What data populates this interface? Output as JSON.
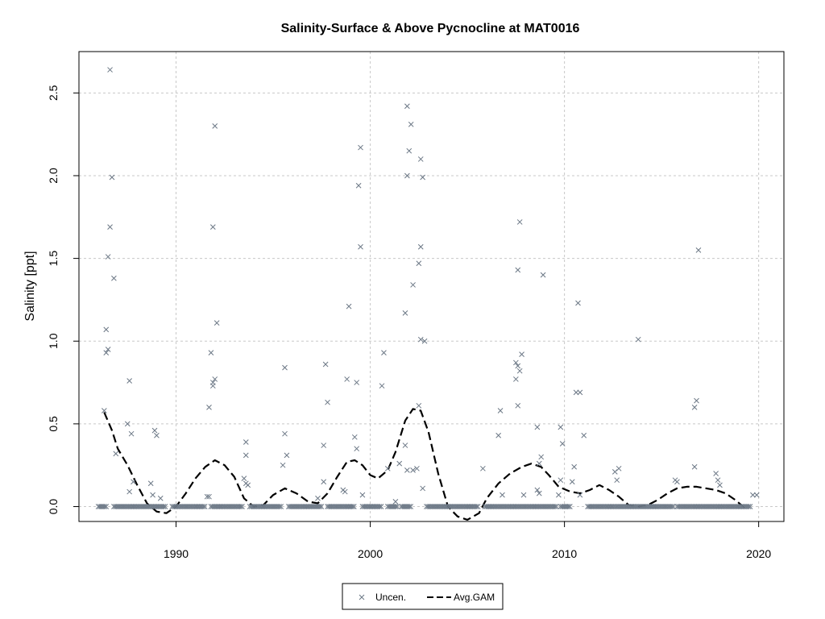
{
  "chart_data": {
    "type": "scatter",
    "title": "Salinity-Surface & Above Pycnocline at MAT0016",
    "xlabel": "",
    "ylabel": "Salinity [ppt]",
    "xlim": [
      1985,
      2021.3
    ],
    "ylim": [
      -0.09,
      2.75
    ],
    "x_ticks": [
      1990,
      2000,
      2010,
      2020
    ],
    "y_ticks": [
      0.0,
      0.5,
      1.0,
      1.5,
      2.0,
      2.5
    ],
    "x_tick_labels": [
      "1990",
      "2000",
      "2010",
      "2020"
    ],
    "y_tick_labels": [
      "0.0",
      "0.5",
      "1.0",
      "1.5",
      "2.0",
      "2.5"
    ],
    "grid": true,
    "legend": {
      "placement": "bottom-center",
      "entries": [
        "Uncen.",
        "Avg.GAM"
      ]
    },
    "colors": {
      "points": "#6b7785",
      "gam": "#000000",
      "grid": "#c8c8c8"
    },
    "series": [
      {
        "name": "Uncen.",
        "type": "scatter",
        "marker": "x",
        "points": [
          [
            1986.6,
            2.64
          ],
          [
            1986.7,
            1.99
          ],
          [
            1986.6,
            1.69
          ],
          [
            1986.5,
            1.51
          ],
          [
            1986.8,
            1.38
          ],
          [
            1986.4,
            1.07
          ],
          [
            1986.5,
            0.95
          ],
          [
            1986.4,
            0.93
          ],
          [
            1986.3,
            0.58
          ],
          [
            1986.9,
            0.32
          ],
          [
            1987.6,
            0.76
          ],
          [
            1987.5,
            0.5
          ],
          [
            1987.7,
            0.44
          ],
          [
            1987.8,
            0.15
          ],
          [
            1987.6,
            0.09
          ],
          [
            1988.7,
            0.14
          ],
          [
            1988.9,
            0.46
          ],
          [
            1989.0,
            0.43
          ],
          [
            1988.8,
            0.07
          ],
          [
            1989.2,
            0.05
          ],
          [
            1991.6,
            0.06
          ],
          [
            1991.7,
            0.06
          ],
          [
            1991.8,
            0.93
          ],
          [
            1991.9,
            0.73
          ],
          [
            1991.7,
            0.6
          ],
          [
            1991.9,
            0.75
          ],
          [
            1992.0,
            0.77
          ],
          [
            1992.1,
            1.11
          ],
          [
            1992.0,
            2.3
          ],
          [
            1991.9,
            1.69
          ],
          [
            1993.6,
            0.39
          ],
          [
            1993.5,
            0.17
          ],
          [
            1993.6,
            0.14
          ],
          [
            1993.7,
            0.13
          ],
          [
            1993.6,
            0.31
          ],
          [
            1995.6,
            0.84
          ],
          [
            1995.6,
            0.44
          ],
          [
            1995.5,
            0.25
          ],
          [
            1995.7,
            0.31
          ],
          [
            1997.6,
            0.37
          ],
          [
            1997.7,
            0.86
          ],
          [
            1997.8,
            0.63
          ],
          [
            1997.6,
            0.15
          ],
          [
            1997.3,
            0.05
          ],
          [
            1998.9,
            1.21
          ],
          [
            1998.8,
            0.77
          ],
          [
            1998.6,
            0.1
          ],
          [
            1998.7,
            0.09
          ],
          [
            1999.5,
            2.17
          ],
          [
            1999.4,
            1.94
          ],
          [
            1999.5,
            1.57
          ],
          [
            1999.3,
            0.75
          ],
          [
            1999.2,
            0.42
          ],
          [
            1999.3,
            0.35
          ],
          [
            1999.6,
            0.07
          ],
          [
            2000.7,
            0.93
          ],
          [
            2000.6,
            0.73
          ],
          [
            2000.9,
            0.23
          ],
          [
            2001.9,
            2.42
          ],
          [
            2002.1,
            2.31
          ],
          [
            2002.0,
            2.15
          ],
          [
            2001.9,
            2.0
          ],
          [
            2002.2,
            1.34
          ],
          [
            2001.8,
            1.17
          ],
          [
            2001.5,
            0.26
          ],
          [
            2001.8,
            0.37
          ],
          [
            2001.9,
            0.22
          ],
          [
            2002.2,
            0.22
          ],
          [
            2002.4,
            0.23
          ],
          [
            2002.5,
            0.61
          ],
          [
            2002.6,
            2.1
          ],
          [
            2002.7,
            1.99
          ],
          [
            2002.6,
            1.57
          ],
          [
            2002.5,
            1.47
          ],
          [
            2002.6,
            1.01
          ],
          [
            2002.8,
            1.0
          ],
          [
            2002.7,
            0.11
          ],
          [
            2001.3,
            0.03
          ],
          [
            2005.8,
            0.23
          ],
          [
            2006.7,
            0.58
          ],
          [
            2006.6,
            0.43
          ],
          [
            2006.8,
            0.07
          ],
          [
            2007.7,
            1.72
          ],
          [
            2007.6,
            1.43
          ],
          [
            2007.8,
            0.92
          ],
          [
            2007.5,
            0.87
          ],
          [
            2007.6,
            0.85
          ],
          [
            2007.7,
            0.82
          ],
          [
            2007.5,
            0.77
          ],
          [
            2007.6,
            0.61
          ],
          [
            2007.9,
            0.07
          ],
          [
            2008.6,
            0.48
          ],
          [
            2008.9,
            1.4
          ],
          [
            2008.7,
            0.08
          ],
          [
            2008.6,
            0.1
          ],
          [
            2008.8,
            0.3
          ],
          [
            2008.7,
            0.26
          ],
          [
            2009.8,
            0.48
          ],
          [
            2009.9,
            0.38
          ],
          [
            2009.7,
            0.07
          ],
          [
            2009.8,
            0.16
          ],
          [
            2010.7,
            1.23
          ],
          [
            2010.6,
            0.69
          ],
          [
            2010.8,
            0.69
          ],
          [
            2011.0,
            0.43
          ],
          [
            2010.5,
            0.24
          ],
          [
            2010.4,
            0.15
          ],
          [
            2010.8,
            0.07
          ],
          [
            2012.6,
            0.21
          ],
          [
            2012.8,
            0.23
          ],
          [
            2012.7,
            0.16
          ],
          [
            2013.8,
            1.01
          ],
          [
            2015.7,
            0.16
          ],
          [
            2015.8,
            0.15
          ],
          [
            2016.7,
            0.6
          ],
          [
            2016.8,
            0.64
          ],
          [
            2016.9,
            1.55
          ],
          [
            2016.7,
            0.24
          ],
          [
            2017.8,
            0.2
          ],
          [
            2017.9,
            0.16
          ],
          [
            2018.0,
            0.13
          ],
          [
            2019.7,
            0.07
          ],
          [
            2019.9,
            0.07
          ]
        ],
        "zero_cluster_ranges": [
          [
            1986.0,
            1986.4
          ],
          [
            1986.8,
            1989.5
          ],
          [
            1989.8,
            1991.5
          ],
          [
            1991.8,
            1993.4
          ],
          [
            1993.8,
            1995.4
          ],
          [
            1995.8,
            1997.5
          ],
          [
            1997.8,
            1999.2
          ],
          [
            1999.6,
            2000.6
          ],
          [
            2000.9,
            2001.4
          ],
          [
            2001.6,
            2002.1
          ],
          [
            2002.9,
            2005.6
          ],
          [
            2005.9,
            2009.6
          ],
          [
            2009.8,
            2010.3
          ],
          [
            2011.2,
            2015.6
          ],
          [
            2015.8,
            2019.6
          ]
        ]
      },
      {
        "name": "Avg.GAM",
        "type": "line",
        "style": "dashed",
        "points": [
          [
            1986.3,
            0.57
          ],
          [
            1986.7,
            0.46
          ],
          [
            1987.0,
            0.35
          ],
          [
            1987.5,
            0.25
          ],
          [
            1988.0,
            0.13
          ],
          [
            1988.5,
            0.02
          ],
          [
            1989.0,
            -0.03
          ],
          [
            1989.5,
            -0.04
          ],
          [
            1990.0,
            0.0
          ],
          [
            1990.5,
            0.08
          ],
          [
            1991.0,
            0.17
          ],
          [
            1991.5,
            0.24
          ],
          [
            1992.0,
            0.28
          ],
          [
            1992.5,
            0.25
          ],
          [
            1993.0,
            0.18
          ],
          [
            1993.5,
            0.05
          ],
          [
            1994.0,
            0.0
          ],
          [
            1994.5,
            0.01
          ],
          [
            1995.0,
            0.07
          ],
          [
            1995.6,
            0.11
          ],
          [
            1996.2,
            0.08
          ],
          [
            1996.8,
            0.03
          ],
          [
            1997.3,
            0.02
          ],
          [
            1997.8,
            0.08
          ],
          [
            1998.3,
            0.18
          ],
          [
            1998.8,
            0.27
          ],
          [
            1999.2,
            0.28
          ],
          [
            1999.6,
            0.25
          ],
          [
            2000.0,
            0.19
          ],
          [
            2000.4,
            0.17
          ],
          [
            2000.9,
            0.22
          ],
          [
            2001.3,
            0.33
          ],
          [
            2001.8,
            0.52
          ],
          [
            2002.2,
            0.59
          ],
          [
            2002.6,
            0.58
          ],
          [
            2003.0,
            0.45
          ],
          [
            2003.5,
            0.2
          ],
          [
            2004.0,
            0.0
          ],
          [
            2004.5,
            -0.06
          ],
          [
            2005.0,
            -0.08
          ],
          [
            2005.6,
            -0.04
          ],
          [
            2006.0,
            0.05
          ],
          [
            2006.6,
            0.14
          ],
          [
            2007.2,
            0.2
          ],
          [
            2007.8,
            0.24
          ],
          [
            2008.3,
            0.26
          ],
          [
            2008.8,
            0.24
          ],
          [
            2009.2,
            0.19
          ],
          [
            2009.7,
            0.12
          ],
          [
            2010.3,
            0.09
          ],
          [
            2010.8,
            0.08
          ],
          [
            2011.3,
            0.1
          ],
          [
            2011.8,
            0.13
          ],
          [
            2012.3,
            0.1
          ],
          [
            2012.8,
            0.06
          ],
          [
            2013.3,
            0.01
          ],
          [
            2013.8,
            0.0
          ],
          [
            2014.3,
            0.01
          ],
          [
            2014.8,
            0.04
          ],
          [
            2015.3,
            0.08
          ],
          [
            2015.8,
            0.11
          ],
          [
            2016.3,
            0.12
          ],
          [
            2016.8,
            0.12
          ],
          [
            2017.3,
            0.11
          ],
          [
            2017.8,
            0.1
          ],
          [
            2018.3,
            0.08
          ],
          [
            2018.8,
            0.04
          ],
          [
            2019.3,
            -0.01
          ]
        ]
      }
    ]
  }
}
